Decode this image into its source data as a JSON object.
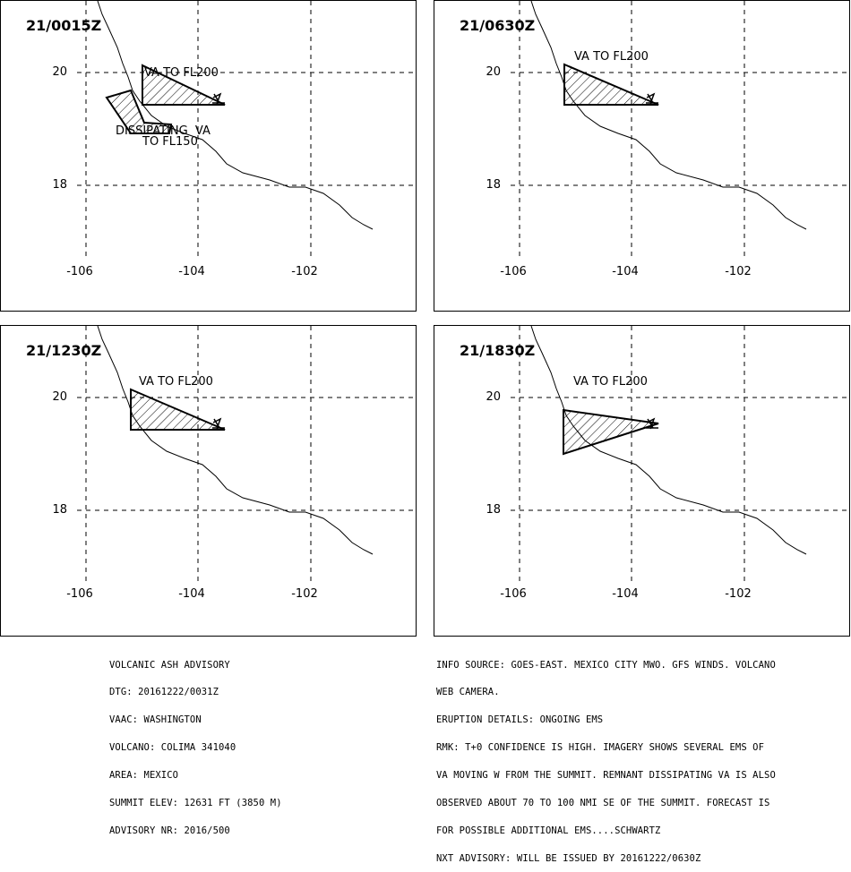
{
  "panels": [
    {
      "time": "21/0015Z",
      "annotations": [
        "VA TO FL200",
        "DISSIPATING  VA",
        "TO FL150"
      ]
    },
    {
      "time": "21/0630Z",
      "annotations": [
        "VA TO FL200"
      ]
    },
    {
      "time": "21/1230Z",
      "annotations": [
        "VA TO FL200"
      ]
    },
    {
      "time": "21/1830Z",
      "annotations": [
        "VA TO FL200"
      ]
    }
  ],
  "axes": {
    "y_labels": [
      "20",
      "18"
    ],
    "x_labels": [
      "-106",
      "-104",
      "-102"
    ]
  },
  "advisory_left": [
    "VOLCANIC ASH ADVISORY",
    "DTG: 20161222/0031Z",
    "VAAC: WASHINGTON",
    "VOLCANO: COLIMA 341040",
    "AREA: MEXICO",
    "SUMMIT ELEV: 12631 FT (3850 M)",
    "ADVISORY NR: 2016/500"
  ],
  "advisory_right": [
    "INFO SOURCE: GOES-EAST. MEXICO CITY MWO. GFS WINDS. VOLCANO",
    "WEB CAMERA.",
    "ERUPTION DETAILS: ONGOING EMS",
    "RMK: T+0 CONFIDENCE IS HIGH. IMAGERY SHOWS SEVERAL EMS OF",
    "VA MOVING W FROM THE SUMMIT. REMNANT DISSIPATING VA IS ALSO",
    "OBSERVED ABOUT 70 TO 100 NMI SE OF THE SUMMIT. FORECAST IS",
    "FOR POSSIBLE ADDITIONAL EMS....SCHWARTZ",
    "NXT ADVISORY: WILL BE ISSUED BY 20161222/0630Z"
  ]
}
